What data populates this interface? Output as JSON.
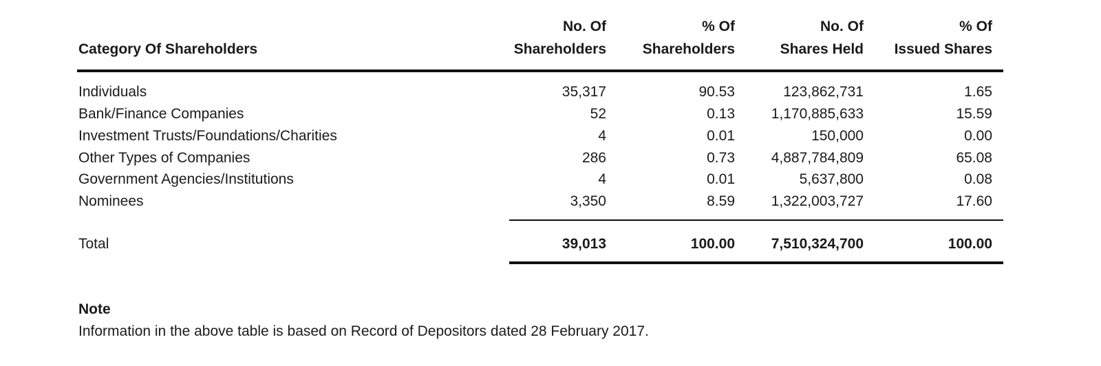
{
  "table": {
    "headers": {
      "category": "Category Of Shareholders",
      "no_of_shareholders": [
        "No. Of",
        "Shareholders"
      ],
      "pct_of_shareholders": [
        "% Of",
        "Shareholders"
      ],
      "no_of_shares_held": [
        "No. Of",
        "Shares Held"
      ],
      "pct_of_issued_shares": [
        "% Of",
        "Issued Shares"
      ]
    },
    "rows": [
      {
        "category": "Individuals",
        "no_of_shareholders": "35,317",
        "pct_of_shareholders": "90.53",
        "no_of_shares_held": "123,862,731",
        "pct_of_issued_shares": "1.65"
      },
      {
        "category": "Bank/Finance Companies",
        "no_of_shareholders": "52",
        "pct_of_shareholders": "0.13",
        "no_of_shares_held": "1,170,885,633",
        "pct_of_issued_shares": "15.59"
      },
      {
        "category": "Investment Trusts/Foundations/Charities",
        "no_of_shareholders": "4",
        "pct_of_shareholders": "0.01",
        "no_of_shares_held": "150,000",
        "pct_of_issued_shares": "0.00"
      },
      {
        "category": "Other Types of Companies",
        "no_of_shareholders": "286",
        "pct_of_shareholders": "0.73",
        "no_of_shares_held": "4,887,784,809",
        "pct_of_issued_shares": "65.08"
      },
      {
        "category": "Government Agencies/Institutions",
        "no_of_shareholders": "4",
        "pct_of_shareholders": "0.01",
        "no_of_shares_held": "5,637,800",
        "pct_of_issued_shares": "0.08"
      },
      {
        "category": "Nominees",
        "no_of_shareholders": "3,350",
        "pct_of_shareholders": "8.59",
        "no_of_shares_held": "1,322,003,727",
        "pct_of_issued_shares": "17.60"
      }
    ],
    "total": {
      "category": "Total",
      "no_of_shareholders": "39,013",
      "pct_of_shareholders": "100.00",
      "no_of_shares_held": "7,510,324,700",
      "pct_of_issued_shares": "100.00"
    }
  },
  "note": {
    "title": "Note",
    "text": "Information in the above table is based on Record of Depositors dated 28 February 2017."
  }
}
